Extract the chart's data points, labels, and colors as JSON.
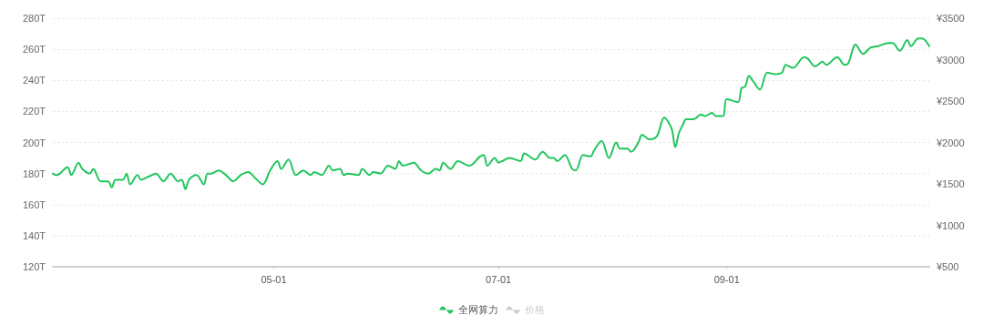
{
  "chart_data": {
    "type": "line",
    "x": [
      "--03-02",
      "--03-03",
      "--03-06",
      "--03-07",
      "--03-09",
      "--03-10",
      "--03-12",
      "--03-13",
      "--03-15",
      "--03-17",
      "--03-18",
      "--03-19",
      "--03-21",
      "--03-22",
      "--03-23",
      "--03-25",
      "--03-26",
      "--03-28",
      "--03-30",
      "--04-01",
      "--04-03",
      "--04-05",
      "--04-06",
      "--04-07",
      "--04-08",
      "--04-10",
      "--04-12",
      "--04-13",
      "--04-14",
      "--04-16",
      "--04-18",
      "--04-20",
      "--04-22",
      "--04-24",
      "--04-26",
      "--04-28",
      "--04-30",
      "--05-02",
      "--05-03",
      "--05-05",
      "--05-07",
      "--05-09",
      "--05-11",
      "--05-12",
      "--05-14",
      "--05-16",
      "--05-17",
      "--05-19",
      "--05-20",
      "--05-21",
      "--05-24",
      "--05-25",
      "--05-27",
      "--05-28",
      "--05-30",
      "--06-01",
      "--06-03",
      "--06-04",
      "--06-05",
      "--06-08",
      "--06-10",
      "--06-12",
      "--06-14",
      "--06-15",
      "--06-16",
      "--06-18",
      "--06-20",
      "--06-23",
      "--06-26",
      "--06-27",
      "--06-28",
      "--06-30",
      "--07-01",
      "--07-02",
      "--07-04",
      "--07-07",
      "--07-08",
      "--07-11",
      "--07-13",
      "--07-15",
      "--07-16",
      "--07-17",
      "--07-19",
      "--07-21",
      "--07-22",
      "--07-24",
      "--07-26",
      "--07-27",
      "--07-29",
      "--07-31",
      "--08-02",
      "--08-03",
      "--08-05",
      "--08-06",
      "--08-08",
      "--08-09",
      "--08-11",
      "--08-13",
      "--08-15",
      "--08-17",
      "--08-18",
      "--08-19",
      "--08-20",
      "--08-21",
      "--08-23",
      "--08-25",
      "--08-26",
      "--08-28",
      "--08-29",
      "--08-31",
      "--09-01",
      "--09-04",
      "--09-05",
      "--09-06",
      "--09-07",
      "--09-08",
      "--09-10",
      "--09-12",
      "--09-14",
      "--09-16",
      "--09-17",
      "--09-19",
      "--09-22",
      "--09-23",
      "--09-25",
      "--09-27",
      "--09-28",
      "--10-01",
      "--10-03",
      "--10-04",
      "--10-06",
      "--10-08",
      "--10-10",
      "--10-12",
      "--10-15",
      "--10-16",
      "--10-18",
      "--10-20",
      "--10-21",
      "--10-23",
      "--10-24",
      "--10-26"
    ],
    "series": [
      {
        "name": "全网算力",
        "color": "#22c55e",
        "values": [
          180,
          179,
          184,
          179,
          187,
          183,
          180,
          183,
          175,
          175,
          171,
          176,
          176,
          180,
          173,
          179,
          176,
          178,
          180,
          175,
          180,
          175,
          176,
          170,
          176,
          179,
          173,
          180,
          180,
          182,
          179,
          175,
          179,
          181,
          177,
          173,
          182,
          188,
          183,
          189,
          179,
          182,
          179,
          181,
          179,
          185,
          182,
          183,
          179,
          180,
          179,
          183,
          179,
          181,
          180,
          185,
          183,
          188,
          185,
          187,
          182,
          180,
          183,
          182,
          187,
          183,
          188,
          185,
          191,
          192,
          185,
          190,
          187,
          188,
          190,
          188,
          193,
          189,
          194,
          190,
          190,
          188,
          192,
          183,
          182,
          192,
          191,
          195,
          201,
          190,
          200,
          196,
          196,
          194,
          200,
          205,
          202,
          204,
          216,
          209,
          197,
          206,
          211,
          215,
          215,
          218,
          217,
          219,
          217,
          217,
          228,
          226,
          235,
          236,
          243,
          240,
          234,
          245,
          244,
          245,
          250,
          248,
          255,
          254,
          249,
          252,
          250,
          255,
          250,
          251,
          263,
          257,
          261,
          262,
          264,
          264,
          259,
          266,
          262,
          267,
          267,
          262
        ]
      },
      {
        "name": "价格",
        "color": "#cccccc",
        "axis": "y2",
        "values": [
          null,
          null,
          null,
          null,
          null,
          null,
          null,
          null,
          null,
          null,
          null,
          null,
          null,
          null,
          null,
          null,
          null,
          null,
          null,
          null,
          null,
          null,
          null,
          null,
          null,
          null,
          null,
          null,
          null,
          null,
          null,
          null,
          null,
          null,
          null,
          null,
          null,
          null,
          null,
          null,
          null,
          null,
          null,
          null,
          null,
          null,
          null,
          null,
          null,
          null,
          null,
          null,
          null,
          null,
          null,
          null,
          null,
          null,
          null,
          null,
          null,
          null,
          null,
          null,
          null,
          null,
          null,
          null,
          null,
          null,
          null,
          null,
          null,
          null,
          null,
          null,
          null,
          null,
          null,
          null,
          null,
          null,
          null,
          null,
          null,
          null,
          null,
          null,
          null,
          null,
          null,
          null,
          null,
          null,
          null,
          null,
          null,
          null,
          null,
          null,
          null,
          null,
          null,
          null,
          null,
          null,
          null,
          null,
          null,
          null,
          null,
          null,
          null,
          null,
          null,
          null,
          null,
          null,
          null,
          null,
          null,
          null,
          null,
          null,
          null,
          null,
          null,
          null,
          null,
          null,
          null,
          null,
          null,
          null,
          null,
          null,
          null,
          null,
          null,
          null,
          null,
          null
        ]
      }
    ],
    "xlim": [
      "--03-02",
      "--10-26"
    ],
    "xticks": [
      {
        "value": "--05-01",
        "label": "05-01"
      },
      {
        "value": "--07-01",
        "label": "07-01"
      },
      {
        "value": "--09-01",
        "label": "09-01"
      }
    ],
    "ylim": [
      120,
      280
    ],
    "yticks": [
      {
        "value": 120,
        "label": "120T"
      },
      {
        "value": 140,
        "label": "140T"
      },
      {
        "value": 160,
        "label": "160T"
      },
      {
        "value": 180,
        "label": "180T"
      },
      {
        "value": 200,
        "label": "200T"
      },
      {
        "value": 220,
        "label": "220T"
      },
      {
        "value": 240,
        "label": "240T"
      },
      {
        "value": 260,
        "label": "260T"
      },
      {
        "value": 280,
        "label": "280T"
      }
    ],
    "y2lim": [
      500,
      3500
    ],
    "y2ticks": [
      {
        "value": 500,
        "label": "¥500"
      },
      {
        "value": 1000,
        "label": "¥1000"
      },
      {
        "value": 1500,
        "label": "¥1500"
      },
      {
        "value": 2000,
        "label": "¥2000"
      },
      {
        "value": 2500,
        "label": "¥2500"
      },
      {
        "value": 3000,
        "label": "¥3000"
      },
      {
        "value": 3500,
        "label": "¥3500"
      }
    ],
    "grid": "y",
    "legend": "bottom",
    "marker": "none",
    "line_style": "solid"
  }
}
